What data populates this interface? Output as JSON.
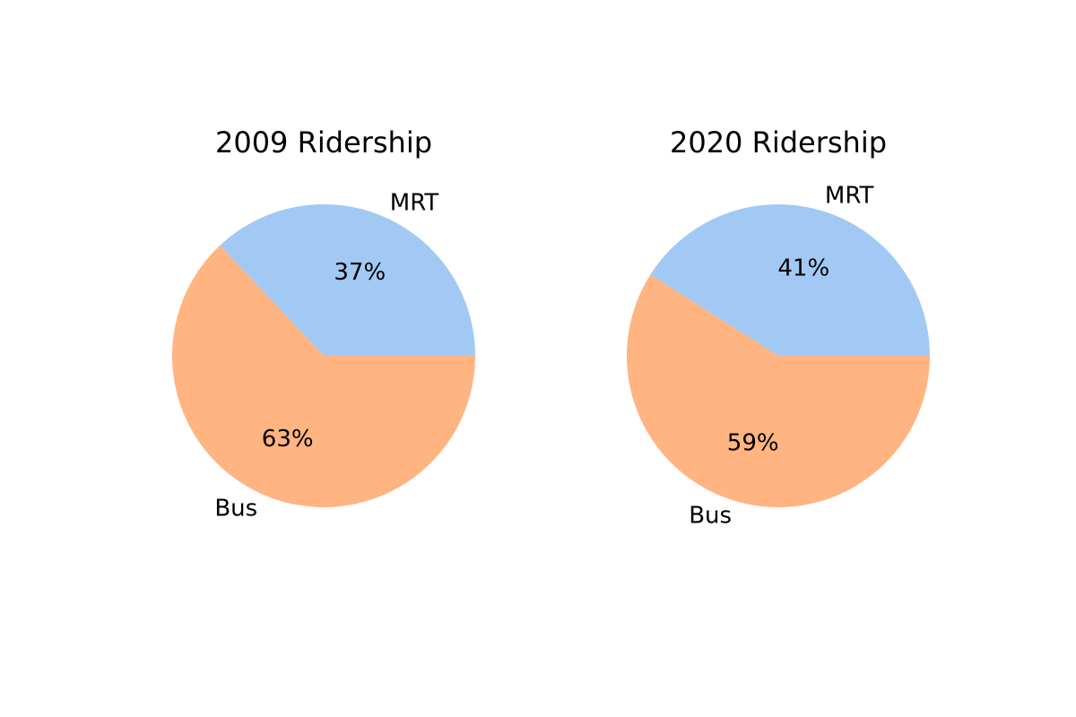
{
  "chart_data": [
    {
      "type": "pie",
      "title": "2009 Ridership",
      "categories": [
        "MRT",
        "Bus"
      ],
      "values": [
        37,
        63
      ],
      "value_labels": [
        "37%",
        "63%"
      ],
      "colors": [
        "#a1c9f4",
        "#ffb482"
      ]
    },
    {
      "type": "pie",
      "title": "2020 Ridership",
      "categories": [
        "MRT",
        "Bus"
      ],
      "values": [
        41,
        59
      ],
      "value_labels": [
        "41%",
        "59%"
      ],
      "colors": [
        "#a1c9f4",
        "#ffb482"
      ]
    }
  ]
}
